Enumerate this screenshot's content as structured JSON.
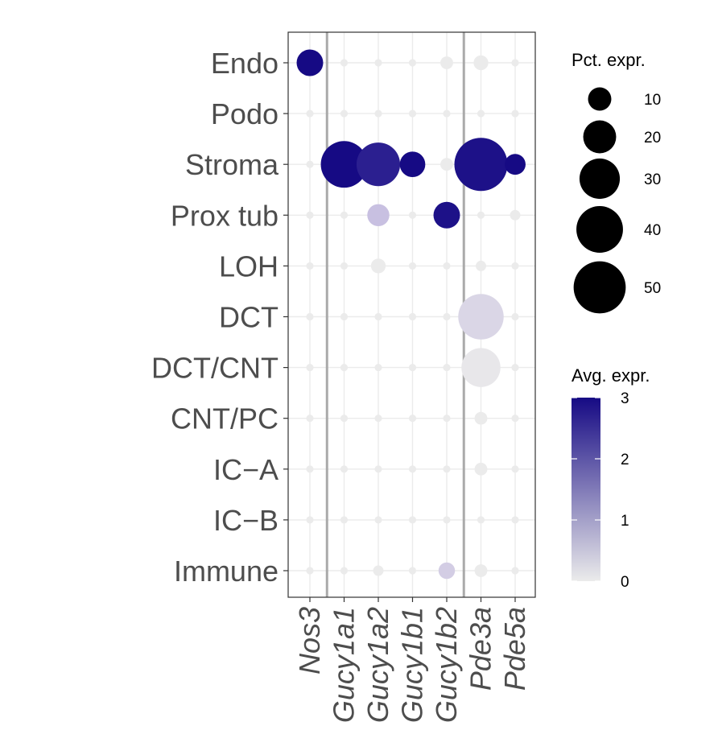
{
  "chart_data": {
    "type": "dotplot",
    "rows": [
      "Endo",
      "Podo",
      "Stroma",
      "Prox tub",
      "LOH",
      "DCT",
      "DCT/CNT",
      "CNT/PC",
      "IC−A",
      "IC−B",
      "Immune"
    ],
    "columns": [
      "Nos3",
      "Gucy1a1",
      "Gucy1a2",
      "Gucy1b1",
      "Gucy1b2",
      "Pde3a",
      "Pde5a"
    ],
    "pct_expr": [
      [
        13,
        1,
        1,
        1,
        3,
        4,
        1
      ],
      [
        1,
        1,
        1,
        1,
        1,
        1,
        1
      ],
      [
        1,
        40,
        35,
        12,
        3,
        52,
        8
      ],
      [
        1,
        1,
        9,
        1,
        13,
        1,
        2
      ],
      [
        1,
        1,
        4,
        1,
        1,
        2,
        1
      ],
      [
        1,
        1,
        1,
        1,
        1,
        38,
        1
      ],
      [
        1,
        1,
        1,
        1,
        1,
        28,
        1
      ],
      [
        1,
        1,
        1,
        1,
        1,
        3,
        1
      ],
      [
        1,
        1,
        1,
        1,
        1,
        3,
        1
      ],
      [
        1,
        1,
        1,
        1,
        1,
        1,
        1
      ],
      [
        1,
        1,
        2,
        1,
        5,
        3,
        1
      ]
    ],
    "avg_expr": [
      [
        3.0,
        0,
        0,
        0,
        0,
        0,
        0
      ],
      [
        0,
        0,
        0,
        0,
        0,
        0,
        0
      ],
      [
        0,
        3.0,
        2.7,
        3.0,
        0,
        2.9,
        3.0
      ],
      [
        0,
        0,
        0.5,
        0,
        2.9,
        0,
        0
      ],
      [
        0,
        0,
        0,
        0,
        0,
        0,
        0
      ],
      [
        0,
        0,
        0,
        0,
        0,
        0.25,
        0
      ],
      [
        0,
        0,
        0,
        0,
        0,
        0.05,
        0
      ],
      [
        0,
        0,
        0,
        0,
        0,
        0,
        0
      ],
      [
        0,
        0,
        0,
        0,
        0,
        0,
        0
      ],
      [
        0,
        0,
        0,
        0,
        0,
        0,
        0
      ],
      [
        0,
        0,
        0,
        0,
        0.35,
        0,
        0
      ]
    ],
    "separators_after_columns": [
      "Nos3",
      "Gucy1b2"
    ],
    "size_legend": {
      "title": "Pct. expr.",
      "values": [
        10,
        20,
        30,
        40,
        50
      ],
      "labels": [
        "10",
        "20",
        "30",
        "40",
        "50"
      ]
    },
    "color_legend": {
      "title": "Avg. expr.",
      "range": [
        0,
        3
      ],
      "ticks": [
        "0",
        "1",
        "2",
        "3"
      ],
      "low_color": "#ebebeb",
      "high_color": "#160a84"
    },
    "grid": true,
    "legend_position": "right"
  }
}
